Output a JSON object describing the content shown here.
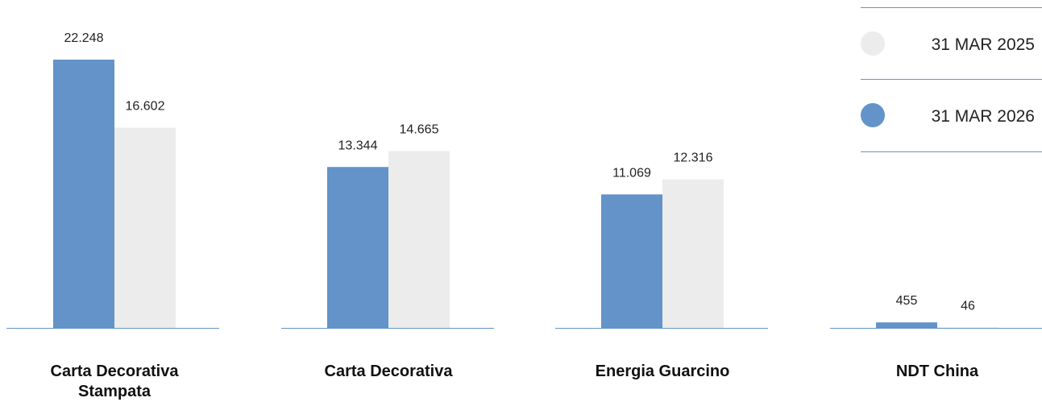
{
  "chart_data": {
    "type": "bar",
    "categories": [
      [
        "Carta Decorativa",
        "Stampata"
      ],
      [
        "Carta Decorativa"
      ],
      [
        "Energia Guarcino"
      ],
      [
        "NDT China"
      ]
    ],
    "series": [
      {
        "name": "31 MAR 2026",
        "color": "#6393c9",
        "values": [
          22248,
          13344,
          11069,
          455
        ],
        "labels": [
          "22.248",
          "13.344",
          "11.069",
          "455"
        ]
      },
      {
        "name": "31 MAR 2025",
        "color": "#ececec",
        "values": [
          16602,
          14665,
          12316,
          46
        ],
        "labels": [
          "16.602",
          "14.665",
          "12.316",
          "46"
        ]
      }
    ],
    "legend": {
      "position": "top-right",
      "order": [
        "31 MAR 2025",
        "31 MAR 2026"
      ]
    },
    "axis_color": "#6393c9",
    "title": "",
    "xlabel": "",
    "ylabel": "",
    "ylim": [
      0,
      22248
    ],
    "grid": false
  }
}
